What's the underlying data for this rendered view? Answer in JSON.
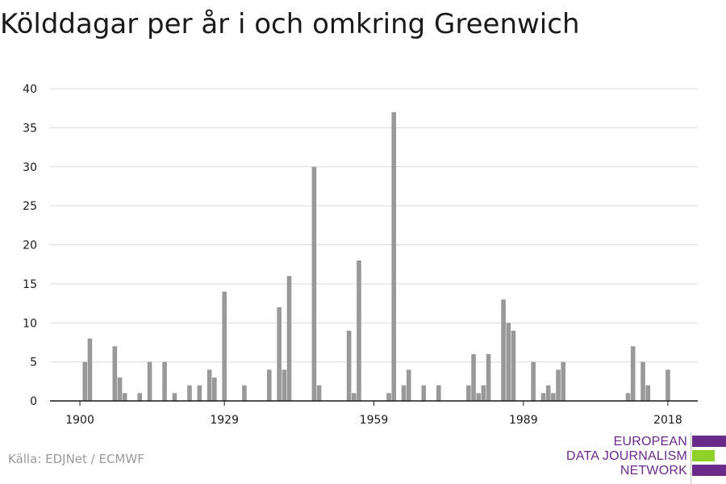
{
  "title": "Kölddagar per år i och omkring Greenwich",
  "source": "Källa: EDJNet / ECMWF",
  "logo": {
    "lines": [
      "EUROPEAN",
      "DATA JOURNALISM",
      "NETWORK"
    ],
    "colors": {
      "purple": "#6a2a8a",
      "green": "#8fd129"
    }
  },
  "chart_data": {
    "type": "bar",
    "title": "Kölddagar per år i och omkring Greenwich",
    "xlabel": "",
    "ylabel": "",
    "ylim": [
      0,
      40
    ],
    "yticks": [
      0,
      5,
      10,
      15,
      20,
      25,
      30,
      35,
      40
    ],
    "xticks": [
      1900,
      1929,
      1959,
      1989,
      2018
    ],
    "xlim": [
      1894,
      2024
    ],
    "bar_color": "#999999",
    "grid": true,
    "x": [
      1901,
      1902,
      1907,
      1908,
      1909,
      1912,
      1914,
      1917,
      1919,
      1922,
      1924,
      1926,
      1927,
      1929,
      1933,
      1938,
      1940,
      1941,
      1942,
      1947,
      1948,
      1954,
      1955,
      1956,
      1962,
      1963,
      1965,
      1966,
      1969,
      1972,
      1978,
      1979,
      1980,
      1981,
      1982,
      1985,
      1986,
      1987,
      1991,
      1993,
      1994,
      1995,
      1996,
      1997,
      2010,
      2011,
      2013,
      2014,
      2018
    ],
    "values": [
      5,
      8,
      7,
      3,
      1,
      1,
      5,
      5,
      1,
      2,
      2,
      4,
      3,
      14,
      2,
      4,
      12,
      4,
      16,
      30,
      2,
      9,
      1,
      18,
      1,
      37,
      2,
      4,
      2,
      2,
      2,
      6,
      1,
      2,
      6,
      13,
      10,
      9,
      5,
      1,
      2,
      1,
      4,
      5,
      1,
      7,
      5,
      2,
      4
    ]
  }
}
